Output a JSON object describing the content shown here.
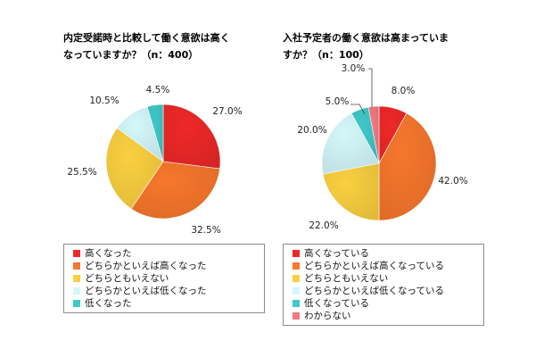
{
  "chart_data": [
    {
      "type": "pie",
      "title": "内定受諾時と比較して働く意欲は高く\nなっていますか？（n：400）",
      "slices": [
        {
          "label": "高くなった",
          "value": 27.0,
          "display": "27.0%",
          "color": "#ee2828"
        },
        {
          "label": "どちらかといえば高くなった",
          "value": 32.5,
          "display": "32.5%",
          "color": "#f7772c"
        },
        {
          "label": "どちらともいえない",
          "value": 25.5,
          "display": "25.5%",
          "color": "#fad040"
        },
        {
          "label": "どちらかといえば低くなった",
          "value": 10.5,
          "display": "10.5%",
          "color": "#d4f8fa"
        },
        {
          "label": "低くなった",
          "value": 4.5,
          "display": "4.5%",
          "color": "#3fc8c8"
        }
      ],
      "legend_position": "bottom"
    },
    {
      "type": "pie",
      "title": "入社予定者の働く意欲は高まっていま\nすか？（n：100）",
      "slices": [
        {
          "label": "高くなっている",
          "value": 8.0,
          "display": "8.0%",
          "color": "#ee2828"
        },
        {
          "label": "どちらかといえば高くなっている",
          "value": 42.0,
          "display": "42.0%",
          "color": "#f7772c"
        },
        {
          "label": "どちらともいえない",
          "value": 22.0,
          "display": "22.0%",
          "color": "#fad040"
        },
        {
          "label": "どちらかといえば低くなっている",
          "value": 20.0,
          "display": "20.0%",
          "color": "#d4f8fa"
        },
        {
          "label": "低くなっている",
          "value": 5.0,
          "display": "5.0%",
          "color": "#3fc8c8"
        },
        {
          "label": "わからない",
          "value": 3.0,
          "display": "3.0%",
          "color": "#f07a82"
        }
      ],
      "legend_position": "bottom"
    }
  ]
}
